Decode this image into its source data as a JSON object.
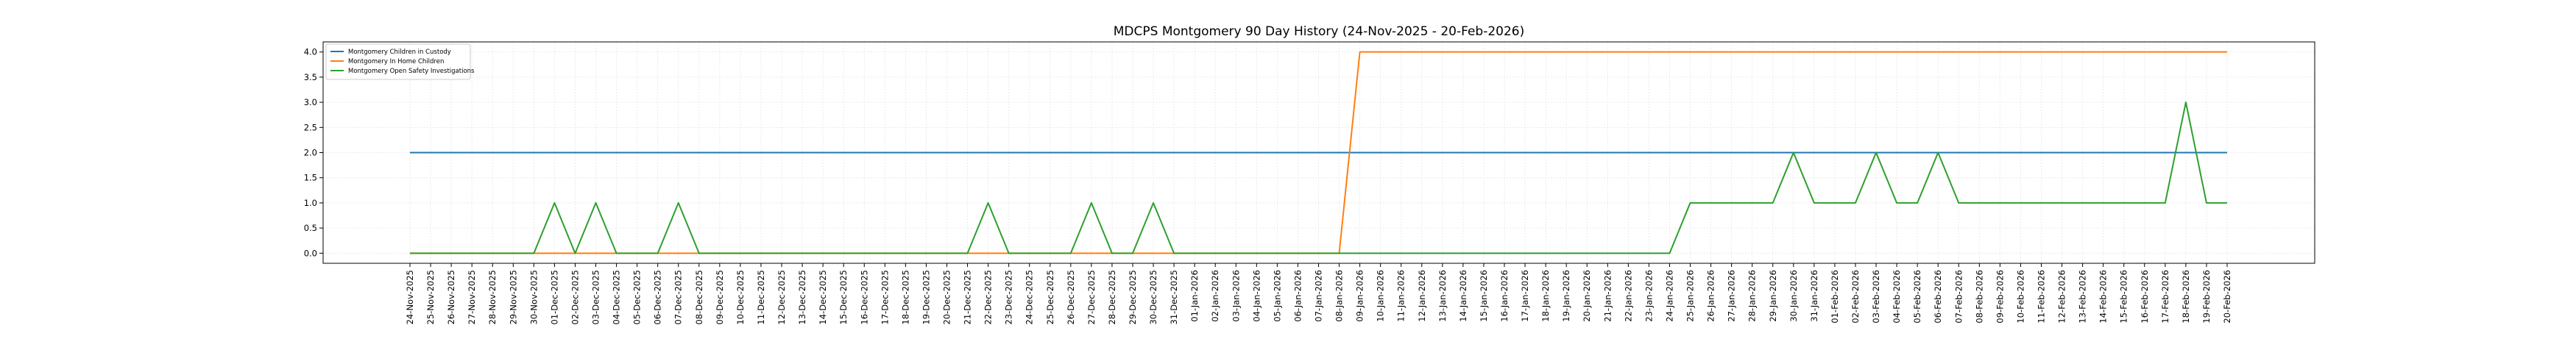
{
  "chart_data": {
    "type": "line",
    "title": "MDCPS Montgomery 90 Day History (24-Nov-2025 - 20-Feb-2026)",
    "xlabel": "",
    "ylabel": "",
    "ylim": [
      -0.2,
      4.2
    ],
    "yticks": [
      0.0,
      0.5,
      1.0,
      1.5,
      2.0,
      2.5,
      3.0,
      3.5,
      4.0
    ],
    "ytick_labels": [
      "0.0",
      "0.5",
      "1.0",
      "1.5",
      "2.0",
      "2.5",
      "3.0",
      "3.5",
      "4.0"
    ],
    "grid": true,
    "legend_position": "top-left",
    "x": [
      "24-Nov-2025",
      "25-Nov-2025",
      "26-Nov-2025",
      "27-Nov-2025",
      "28-Nov-2025",
      "29-Nov-2025",
      "30-Nov-2025",
      "01-Dec-2025",
      "02-Dec-2025",
      "03-Dec-2025",
      "04-Dec-2025",
      "05-Dec-2025",
      "06-Dec-2025",
      "07-Dec-2025",
      "08-Dec-2025",
      "09-Dec-2025",
      "10-Dec-2025",
      "11-Dec-2025",
      "12-Dec-2025",
      "13-Dec-2025",
      "14-Dec-2025",
      "15-Dec-2025",
      "16-Dec-2025",
      "17-Dec-2025",
      "18-Dec-2025",
      "19-Dec-2025",
      "20-Dec-2025",
      "21-Dec-2025",
      "22-Dec-2025",
      "23-Dec-2025",
      "24-Dec-2025",
      "25-Dec-2025",
      "26-Dec-2025",
      "27-Dec-2025",
      "28-Dec-2025",
      "29-Dec-2025",
      "30-Dec-2025",
      "31-Dec-2025",
      "01-Jan-2026",
      "02-Jan-2026",
      "03-Jan-2026",
      "04-Jan-2026",
      "05-Jan-2026",
      "06-Jan-2026",
      "07-Jan-2026",
      "08-Jan-2026",
      "09-Jan-2026",
      "10-Jan-2026",
      "11-Jan-2026",
      "12-Jan-2026",
      "13-Jan-2026",
      "14-Jan-2026",
      "15-Jan-2026",
      "16-Jan-2026",
      "17-Jan-2026",
      "18-Jan-2026",
      "19-Jan-2026",
      "20-Jan-2026",
      "21-Jan-2026",
      "22-Jan-2026",
      "23-Jan-2026",
      "24-Jan-2026",
      "25-Jan-2026",
      "26-Jan-2026",
      "27-Jan-2026",
      "28-Jan-2026",
      "29-Jan-2026",
      "30-Jan-2026",
      "31-Jan-2026",
      "01-Feb-2026",
      "02-Feb-2026",
      "03-Feb-2026",
      "04-Feb-2026",
      "05-Feb-2026",
      "06-Feb-2026",
      "07-Feb-2026",
      "08-Feb-2026",
      "09-Feb-2026",
      "10-Feb-2026",
      "11-Feb-2026",
      "12-Feb-2026",
      "13-Feb-2026",
      "14-Feb-2026",
      "15-Feb-2026",
      "16-Feb-2026",
      "17-Feb-2026",
      "18-Feb-2026",
      "19-Feb-2026",
      "20-Feb-2026"
    ],
    "series": [
      {
        "name": "Montgomery Children in Custody",
        "color": "#1f77b4",
        "values": [
          2,
          2,
          2,
          2,
          2,
          2,
          2,
          2,
          2,
          2,
          2,
          2,
          2,
          2,
          2,
          2,
          2,
          2,
          2,
          2,
          2,
          2,
          2,
          2,
          2,
          2,
          2,
          2,
          2,
          2,
          2,
          2,
          2,
          2,
          2,
          2,
          2,
          2,
          2,
          2,
          2,
          2,
          2,
          2,
          2,
          2,
          2,
          2,
          2,
          2,
          2,
          2,
          2,
          2,
          2,
          2,
          2,
          2,
          2,
          2,
          2,
          2,
          2,
          2,
          2,
          2,
          2,
          2,
          2,
          2,
          2,
          2,
          2,
          2,
          2,
          2,
          2,
          2,
          2,
          2,
          2,
          2,
          2,
          2,
          2,
          2,
          2,
          2,
          2
        ]
      },
      {
        "name": "Montgomery In Home Children",
        "color": "#ff7f0e",
        "values": [
          0,
          0,
          0,
          0,
          0,
          0,
          0,
          0,
          0,
          0,
          0,
          0,
          0,
          0,
          0,
          0,
          0,
          0,
          0,
          0,
          0,
          0,
          0,
          0,
          0,
          0,
          0,
          0,
          0,
          0,
          0,
          0,
          0,
          0,
          0,
          0,
          0,
          0,
          0,
          0,
          0,
          0,
          0,
          0,
          0,
          0,
          4,
          4,
          4,
          4,
          4,
          4,
          4,
          4,
          4,
          4,
          4,
          4,
          4,
          4,
          4,
          4,
          4,
          4,
          4,
          4,
          4,
          4,
          4,
          4,
          4,
          4,
          4,
          4,
          4,
          4,
          4,
          4,
          4,
          4,
          4,
          4,
          4,
          4,
          4,
          4,
          4,
          4,
          4
        ]
      },
      {
        "name": "Montgomery Open Safety Investigations",
        "color": "#2ca02c",
        "values": [
          0,
          0,
          0,
          0,
          0,
          0,
          0,
          1,
          0,
          1,
          0,
          0,
          0,
          1,
          0,
          0,
          0,
          0,
          0,
          0,
          0,
          0,
          0,
          0,
          0,
          0,
          0,
          0,
          1,
          0,
          0,
          0,
          0,
          1,
          0,
          0,
          1,
          0,
          0,
          0,
          0,
          0,
          0,
          0,
          0,
          0,
          0,
          0,
          0,
          0,
          0,
          0,
          0,
          0,
          0,
          0,
          0,
          0,
          0,
          0,
          0,
          0,
          1,
          1,
          1,
          1,
          1,
          2,
          1,
          1,
          1,
          2,
          1,
          1,
          2,
          1,
          1,
          1,
          1,
          1,
          1,
          1,
          1,
          1,
          1,
          1,
          3,
          1,
          1
        ]
      }
    ]
  }
}
